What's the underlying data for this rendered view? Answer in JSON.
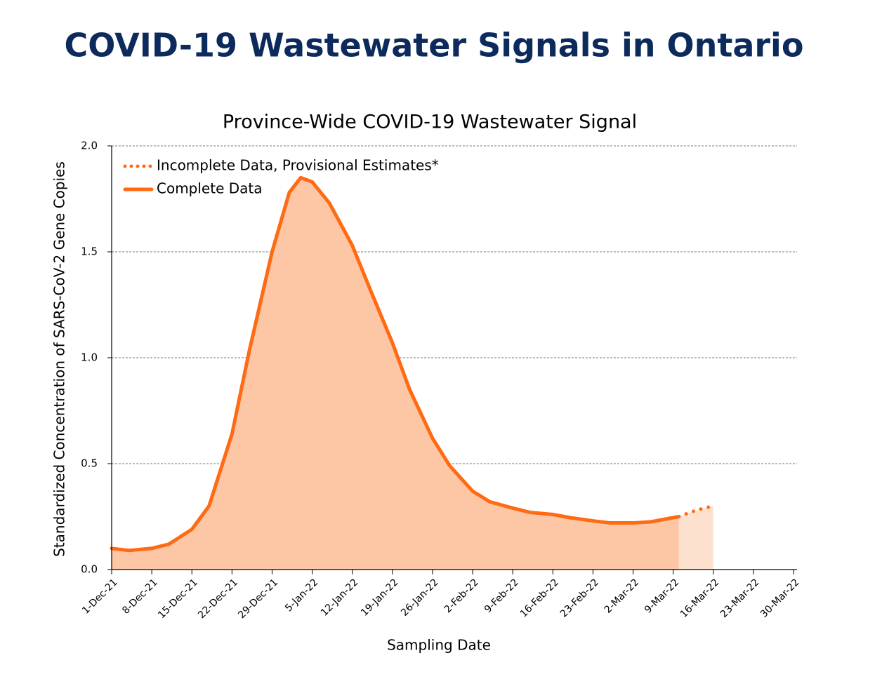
{
  "page_title": "COVID-19 Wastewater Signals in Ontario",
  "chart_data": {
    "type": "area",
    "title": "Province-Wide COVID-19 Wastewater Signal",
    "xlabel": "Sampling Date",
    "ylabel": "Standardized Concentration of SARS-CoV-2 Gene Copies",
    "xlim": [
      "2021-12-01",
      "2022-03-30"
    ],
    "xticks": [
      {
        "value": "2021-12-01",
        "label": "1-Dec-21"
      },
      {
        "value": "2021-12-08",
        "label": "8-Dec-21"
      },
      {
        "value": "2021-12-15",
        "label": "15-Dec-21"
      },
      {
        "value": "2021-12-22",
        "label": "22-Dec-21"
      },
      {
        "value": "2021-12-29",
        "label": "29-Dec-21"
      },
      {
        "value": "2022-01-05",
        "label": "5-Jan-22"
      },
      {
        "value": "2022-01-12",
        "label": "12-Jan-22"
      },
      {
        "value": "2022-01-19",
        "label": "19-Jan-22"
      },
      {
        "value": "2022-01-26",
        "label": "26-Jan-22"
      },
      {
        "value": "2022-02-02",
        "label": "2-Feb-22"
      },
      {
        "value": "2022-02-09",
        "label": "9-Feb-22"
      },
      {
        "value": "2022-02-16",
        "label": "16-Feb-22"
      },
      {
        "value": "2022-02-23",
        "label": "23-Feb-22"
      },
      {
        "value": "2022-03-02",
        "label": "2-Mar-22"
      },
      {
        "value": "2022-03-09",
        "label": "9-Mar-22"
      },
      {
        "value": "2022-03-16",
        "label": "16-Mar-22"
      },
      {
        "value": "2022-03-23",
        "label": "23-Mar-22"
      },
      {
        "value": "2022-03-30",
        "label": "30-Mar-22"
      }
    ],
    "ylim": [
      0,
      2
    ],
    "yticks": [
      {
        "value": 0,
        "label": "0.0"
      },
      0.5,
      {
        "value": 1,
        "label": "1.0"
      },
      1.5,
      {
        "value": 2,
        "label": "2.0"
      }
    ],
    "grid": true,
    "legend": "upper left",
    "series": [
      {
        "name": "Incomplete Data, Provisional Estimates*",
        "color": "#ff6a13",
        "fill": "#fde1cf",
        "style": "dotted",
        "x": [
          "2022-03-10",
          "2022-03-13",
          "2022-03-16"
        ],
        "values": [
          0.25,
          0.28,
          0.3
        ]
      },
      {
        "name": "Complete Data",
        "color": "#ff6a13",
        "fill": "#fdc6a4",
        "style": "solid",
        "x": [
          "2021-12-01",
          "2021-12-04",
          "2021-12-08",
          "2021-12-11",
          "2021-12-15",
          "2021-12-18",
          "2021-12-22",
          "2021-12-25",
          "2021-12-29",
          "2022-01-01",
          "2022-01-03",
          "2022-01-05",
          "2022-01-08",
          "2022-01-12",
          "2022-01-15",
          "2022-01-19",
          "2022-01-22",
          "2022-01-26",
          "2022-01-29",
          "2022-02-02",
          "2022-02-05",
          "2022-02-09",
          "2022-02-12",
          "2022-02-16",
          "2022-02-19",
          "2022-02-23",
          "2022-02-26",
          "2022-03-02",
          "2022-03-05",
          "2022-03-08",
          "2022-03-10"
        ],
        "values": [
          0.1,
          0.09,
          0.1,
          0.12,
          0.19,
          0.3,
          0.64,
          1.03,
          1.5,
          1.78,
          1.85,
          1.83,
          1.73,
          1.53,
          1.33,
          1.07,
          0.85,
          0.62,
          0.49,
          0.37,
          0.32,
          0.29,
          0.27,
          0.26,
          0.245,
          0.23,
          0.22,
          0.22,
          0.225,
          0.24,
          0.25
        ]
      }
    ]
  }
}
